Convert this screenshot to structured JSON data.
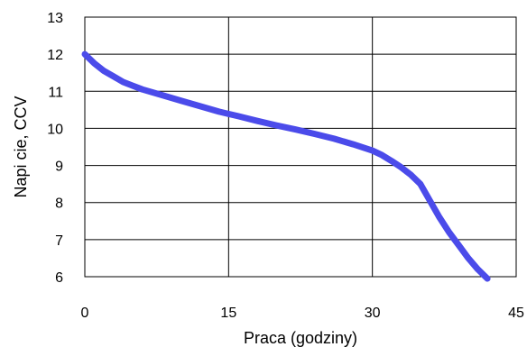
{
  "chart_data": {
    "type": "line",
    "title": "",
    "xlabel": "Praca (godziny)",
    "ylabel": "Napi cie, CCV",
    "xlim": [
      0,
      45
    ],
    "ylim": [
      6,
      13
    ],
    "xticks": [
      "0",
      "15",
      "30",
      "45"
    ],
    "xtick_values": [
      0,
      15,
      30,
      45
    ],
    "yticks": [
      "6",
      "7",
      "8",
      "9",
      "10",
      "11",
      "12",
      "13"
    ],
    "ytick_values": [
      6,
      7,
      8,
      9,
      10,
      11,
      12,
      13
    ],
    "grid": true,
    "legend": "none",
    "series": [
      {
        "color": "#4b4bea",
        "x": [
          0,
          1,
          2,
          3,
          4,
          5,
          6,
          8,
          10,
          12,
          14,
          16,
          18,
          20,
          22,
          24,
          26,
          28,
          30,
          31,
          32,
          33,
          34,
          35,
          36,
          37,
          38,
          39,
          40,
          41,
          42
        ],
        "y": [
          12.0,
          11.75,
          11.55,
          11.4,
          11.25,
          11.15,
          11.05,
          10.9,
          10.75,
          10.6,
          10.45,
          10.33,
          10.2,
          10.08,
          9.97,
          9.85,
          9.72,
          9.57,
          9.4,
          9.28,
          9.12,
          8.95,
          8.75,
          8.5,
          8.05,
          7.6,
          7.2,
          6.85,
          6.5,
          6.2,
          5.95
        ]
      }
    ]
  }
}
